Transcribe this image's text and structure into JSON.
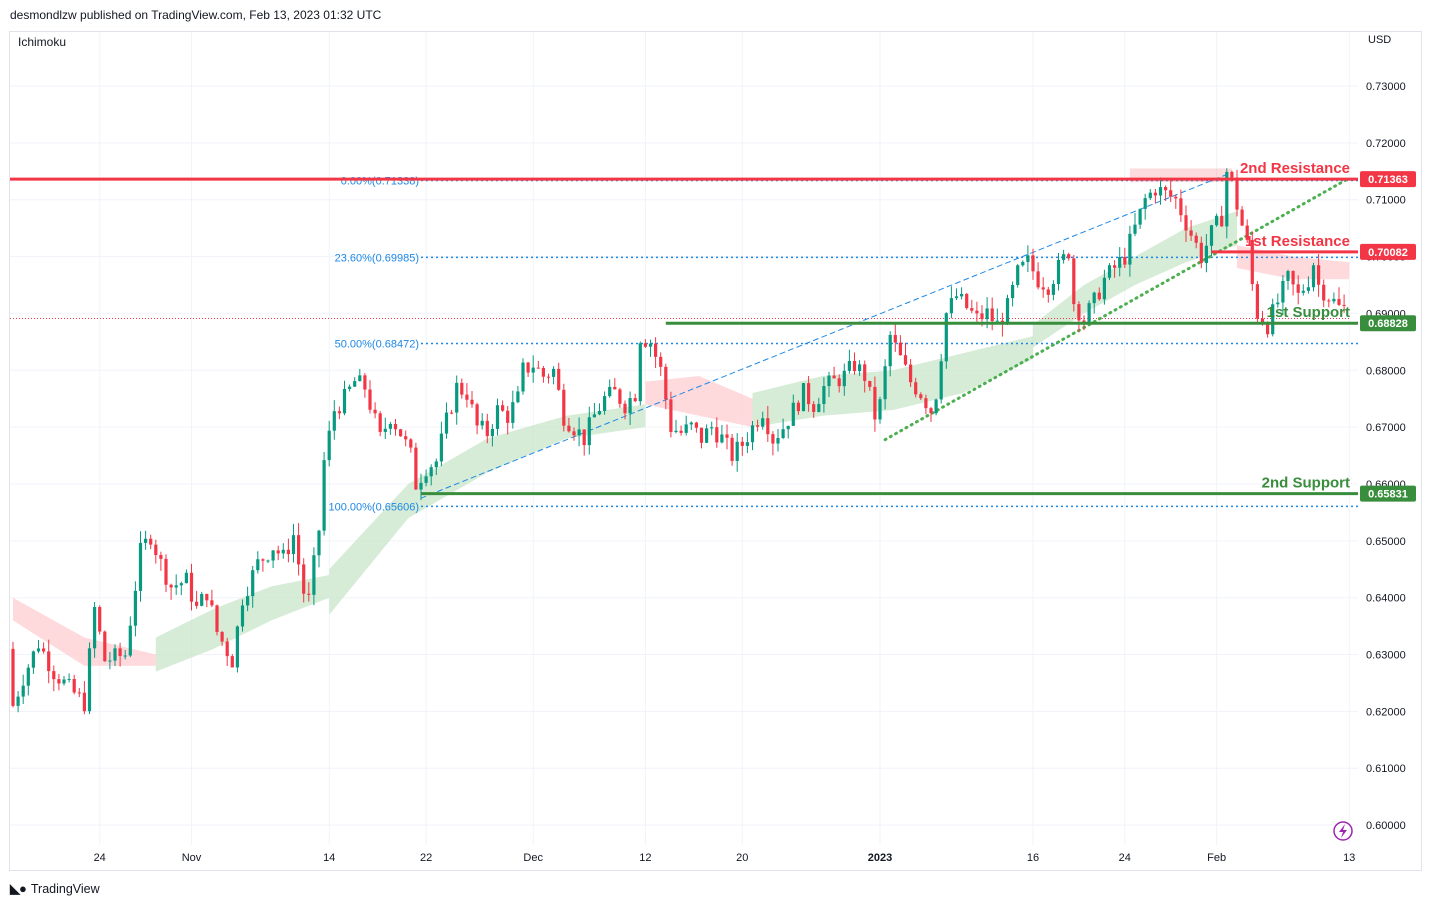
{
  "header": {
    "publisher_line": "desmondlzw published on TradingView.com, Feb 13, 2023 01:32 UTC"
  },
  "indicator": "Ichimoku",
  "currency": "USD",
  "footer": {
    "brand": "TradingView"
  },
  "chart_data": {
    "type": "candlestick",
    "symbol_currency": "USD",
    "y_range": [
      0.5965,
      0.7395
    ],
    "y_ticks": [
      0.6,
      0.61,
      0.62,
      0.63,
      0.64,
      0.65,
      0.66,
      0.67,
      0.68,
      0.69,
      0.7,
      0.71,
      0.72,
      0.73
    ],
    "x_ticks": [
      {
        "label": "24",
        "bar": 17,
        "bold": false
      },
      {
        "label": "Nov",
        "bar": 35,
        "bold": false
      },
      {
        "label": "14",
        "bar": 62,
        "bold": false
      },
      {
        "label": "22",
        "bar": 81,
        "bold": false
      },
      {
        "label": "Dec",
        "bar": 102,
        "bold": false
      },
      {
        "label": "12",
        "bar": 124,
        "bold": false
      },
      {
        "label": "20",
        "bar": 143,
        "bold": false
      },
      {
        "label": "2023",
        "bar": 170,
        "bold": true
      },
      {
        "label": "16",
        "bar": 200,
        "bold": false
      },
      {
        "label": "24",
        "bar": 218,
        "bold": false
      },
      {
        "label": "Feb",
        "bar": 236,
        "bold": false
      },
      {
        "label": "13",
        "bar": 262,
        "bold": false
      }
    ],
    "levels": [
      {
        "name": "2nd Resistance",
        "value": 0.71363,
        "label": "0.71363",
        "color": "#f23645"
      },
      {
        "name": "1st Resistance",
        "value": 0.70082,
        "label": "0.70082",
        "color": "#f23645"
      },
      {
        "name": "1st Support",
        "value": 0.68828,
        "label": "0.68828",
        "color": "#388e3c"
      },
      {
        "name": "2nd Support",
        "value": 0.65831,
        "label": "0.65831",
        "color": "#388e3c"
      }
    ],
    "fibonacci": [
      {
        "label": "0.00%(0.71338)",
        "value": 0.71338
      },
      {
        "label": "23.60%(0.69985)",
        "value": 0.69985
      },
      {
        "label": "50.00%(0.68472)",
        "value": 0.68472
      },
      {
        "label": "100.00%(0.65606)",
        "value": 0.65606
      }
    ],
    "fib_color": "#1e88e5",
    "trend_lines": [
      {
        "style": "dashed",
        "color": "#1e88e5",
        "from": {
          "bar": 80,
          "value": 0.6575
        },
        "to": {
          "bar": 239,
          "value": 0.7148
        }
      },
      {
        "style": "dotted",
        "color": "#4caf50",
        "from": {
          "bar": 171,
          "value": 0.6678
        },
        "to": {
          "bar": 262,
          "value": 0.7138
        }
      }
    ],
    "resistance_zone": {
      "from_bar": 219,
      "to_bar": 239,
      "low": 0.7131,
      "high": 0.7155
    },
    "last_price_line": 0.6891,
    "candle_colors": {
      "up": "#089981",
      "down": "#f23645"
    },
    "ohlc_anchors": [
      [
        0,
        0.631
      ],
      [
        1,
        0.621
      ],
      [
        3,
        0.626
      ],
      [
        6,
        0.632
      ],
      [
        9,
        0.627
      ],
      [
        12,
        0.624
      ],
      [
        15,
        0.6215
      ],
      [
        17,
        0.638
      ],
      [
        19,
        0.629
      ],
      [
        23,
        0.63
      ],
      [
        26,
        0.648
      ],
      [
        28,
        0.651
      ],
      [
        30,
        0.646
      ],
      [
        32,
        0.642
      ],
      [
        35,
        0.643
      ],
      [
        37,
        0.638
      ],
      [
        39,
        0.641
      ],
      [
        41,
        0.634
      ],
      [
        44,
        0.629
      ],
      [
        46,
        0.64
      ],
      [
        49,
        0.646
      ],
      [
        52,
        0.649
      ],
      [
        54,
        0.647
      ],
      [
        56,
        0.651
      ],
      [
        58,
        0.641
      ],
      [
        59,
        0.6395
      ],
      [
        61,
        0.652
      ],
      [
        62,
        0.664
      ],
      [
        64,
        0.673
      ],
      [
        66,
        0.675
      ],
      [
        68,
        0.678
      ],
      [
        70,
        0.677
      ],
      [
        73,
        0.668
      ],
      [
        75,
        0.672
      ],
      [
        77,
        0.669
      ],
      [
        79,
        0.665
      ],
      [
        80,
        0.66
      ],
      [
        82,
        0.663
      ],
      [
        84,
        0.664
      ],
      [
        86,
        0.671
      ],
      [
        88,
        0.677
      ],
      [
        90,
        0.676
      ],
      [
        92,
        0.67
      ],
      [
        94,
        0.669
      ],
      [
        96,
        0.673
      ],
      [
        98,
        0.672
      ],
      [
        100,
        0.675
      ],
      [
        101,
        0.68
      ],
      [
        103,
        0.681
      ],
      [
        105,
        0.679
      ],
      [
        107,
        0.68
      ],
      [
        109,
        0.672
      ],
      [
        111,
        0.67
      ],
      [
        113,
        0.668
      ],
      [
        115,
        0.672
      ],
      [
        117,
        0.675
      ],
      [
        119,
        0.676
      ],
      [
        121,
        0.674
      ],
      [
        123,
        0.676
      ],
      [
        124,
        0.686
      ],
      [
        126,
        0.685
      ],
      [
        128,
        0.68
      ],
      [
        130,
        0.67
      ],
      [
        132,
        0.669
      ],
      [
        134,
        0.67
      ],
      [
        136,
        0.668
      ],
      [
        138,
        0.67
      ],
      [
        140,
        0.668
      ],
      [
        142,
        0.665
      ],
      [
        144,
        0.667
      ],
      [
        146,
        0.67
      ],
      [
        148,
        0.673
      ],
      [
        150,
        0.668
      ],
      [
        152,
        0.67
      ],
      [
        154,
        0.673
      ],
      [
        156,
        0.676
      ],
      [
        158,
        0.674
      ],
      [
        160,
        0.677
      ],
      [
        162,
        0.678
      ],
      [
        164,
        0.679
      ],
      [
        166,
        0.681
      ],
      [
        168,
        0.679
      ],
      [
        170,
        0.672
      ],
      [
        171,
        0.674
      ],
      [
        173,
        0.686
      ],
      [
        175,
        0.682
      ],
      [
        177,
        0.678
      ],
      [
        179,
        0.676
      ],
      [
        181,
        0.673
      ],
      [
        182,
        0.676
      ],
      [
        184,
        0.69
      ],
      [
        186,
        0.693
      ],
      [
        188,
        0.691
      ],
      [
        190,
        0.689
      ],
      [
        192,
        0.69
      ],
      [
        194,
        0.688
      ],
      [
        196,
        0.691
      ],
      [
        198,
        0.697
      ],
      [
        200,
        0.699
      ],
      [
        202,
        0.696
      ],
      [
        204,
        0.695
      ],
      [
        206,
        0.698
      ],
      [
        208,
        0.701
      ],
      [
        209,
        0.692
      ],
      [
        211,
        0.689
      ],
      [
        213,
        0.692
      ],
      [
        215,
        0.696
      ],
      [
        217,
        0.698
      ],
      [
        219,
        0.7
      ],
      [
        221,
        0.705
      ],
      [
        223,
        0.71
      ],
      [
        225,
        0.712
      ],
      [
        227,
        0.711
      ],
      [
        229,
        0.71
      ],
      [
        231,
        0.706
      ],
      [
        233,
        0.702
      ],
      [
        234,
        0.7
      ],
      [
        236,
        0.704
      ],
      [
        238,
        0.707
      ],
      [
        239,
        0.715
      ],
      [
        240,
        0.713
      ],
      [
        241,
        0.709
      ],
      [
        243,
        0.702
      ],
      [
        244,
        0.695
      ],
      [
        245,
        0.69
      ],
      [
        247,
        0.688
      ],
      [
        249,
        0.692
      ],
      [
        251,
        0.696
      ],
      [
        253,
        0.693
      ],
      [
        255,
        0.696
      ],
      [
        256,
        0.699
      ],
      [
        257,
        0.695
      ],
      [
        259,
        0.693
      ],
      [
        261,
        0.691
      ]
    ],
    "bar_count": 262,
    "cloud_bands": [
      {
        "color": "#ffcdd2",
        "from_bar": 0,
        "to_bar": 28,
        "top": [
          0.64,
          0.633,
          0.63
        ],
        "bottom": [
          0.636,
          0.628,
          0.628
        ]
      },
      {
        "color": "#c8e6c9",
        "from_bar": 28,
        "to_bar": 62,
        "top": [
          0.633,
          0.638,
          0.642,
          0.644
        ],
        "bottom": [
          0.627,
          0.631,
          0.636,
          0.64
        ]
      },
      {
        "color": "#c8e6c9",
        "from_bar": 62,
        "to_bar": 124,
        "top": [
          0.645,
          0.66,
          0.668,
          0.672,
          0.674
        ],
        "bottom": [
          0.637,
          0.654,
          0.662,
          0.668,
          0.67
        ]
      },
      {
        "color": "#ffcdd2",
        "from_bar": 124,
        "to_bar": 145,
        "top": [
          0.678,
          0.679,
          0.675
        ],
        "bottom": [
          0.674,
          0.672,
          0.67
        ]
      },
      {
        "color": "#c8e6c9",
        "from_bar": 145,
        "to_bar": 200,
        "top": [
          0.676,
          0.679,
          0.68,
          0.683,
          0.686
        ],
        "bottom": [
          0.67,
          0.672,
          0.673,
          0.676,
          0.682
        ]
      },
      {
        "color": "#c8e6c9",
        "from_bar": 200,
        "to_bar": 240,
        "top": [
          0.688,
          0.695,
          0.7,
          0.705,
          0.708
        ],
        "bottom": [
          0.684,
          0.69,
          0.695,
          0.699,
          0.702
        ]
      },
      {
        "color": "#ffcdd2",
        "from_bar": 240,
        "to_bar": 262,
        "top": [
          0.702,
          0.7,
          0.699
        ],
        "bottom": [
          0.698,
          0.696,
          0.696
        ]
      }
    ]
  }
}
